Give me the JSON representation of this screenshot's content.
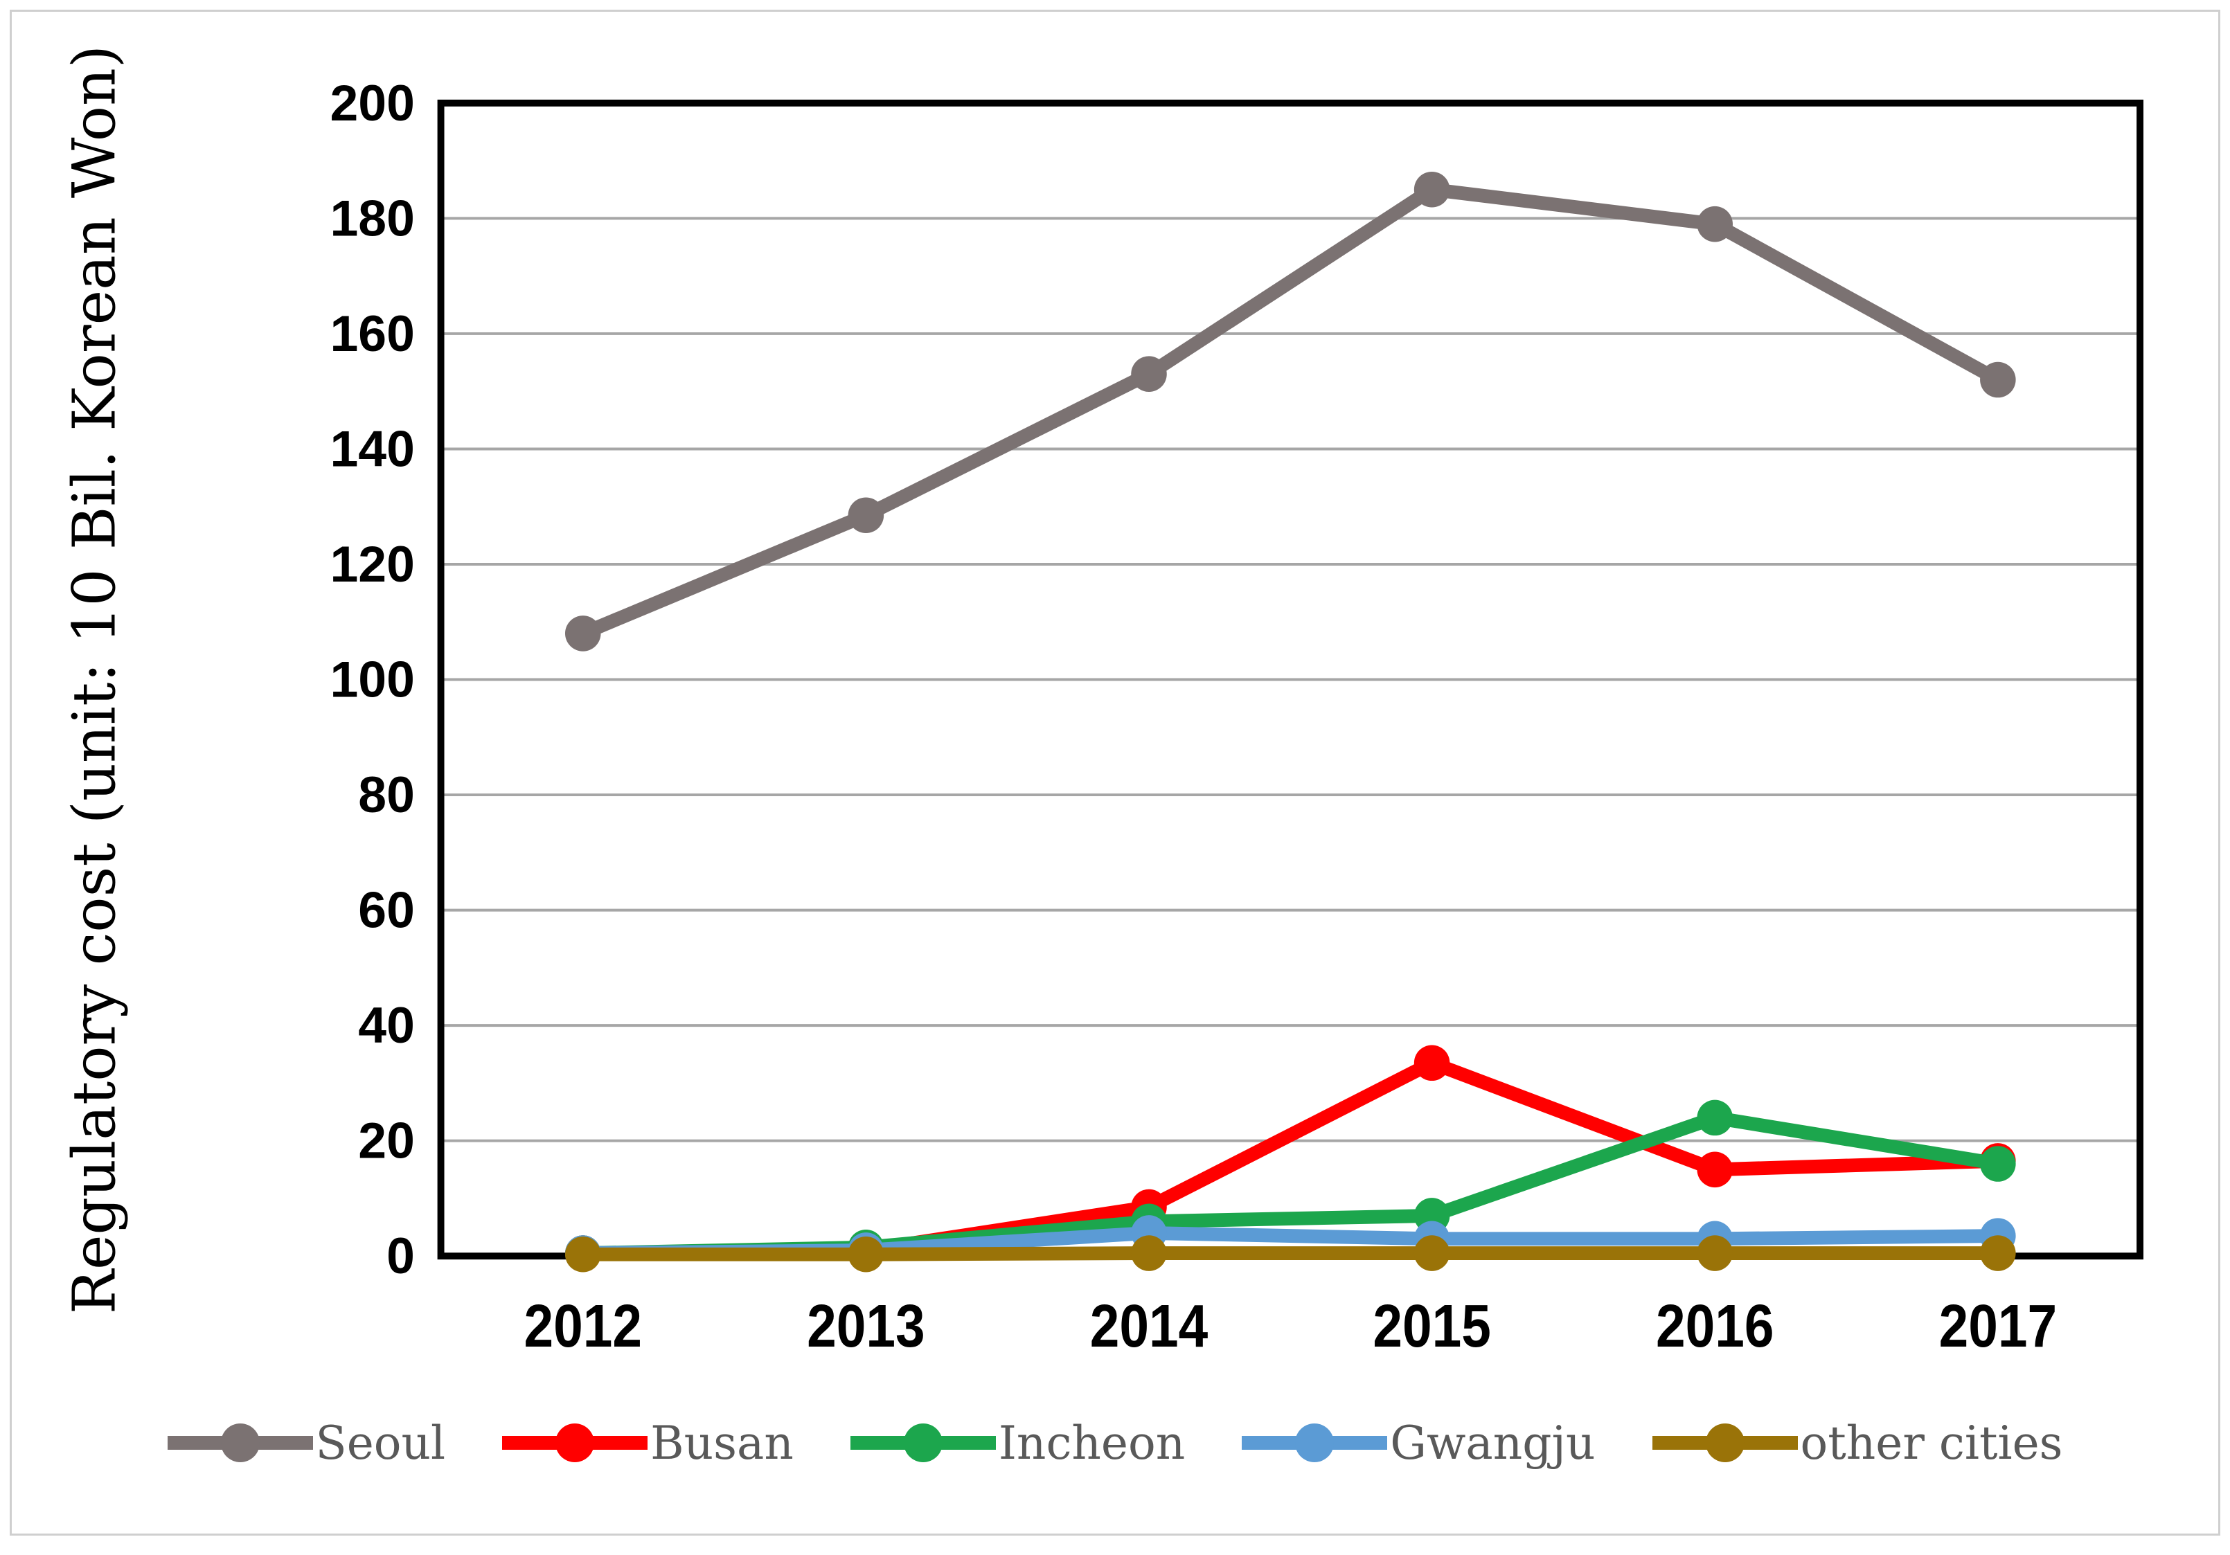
{
  "figure": {
    "background": "#ffffff",
    "outer_border_color": "#cfcfcf"
  },
  "chart_data": {
    "type": "line",
    "title": "",
    "xlabel": "",
    "ylabel": "Regulatory cost (unit: 10 Bil. Korean Won)",
    "categories": [
      "2012",
      "2013",
      "2014",
      "2015",
      "2016",
      "2017"
    ],
    "ylim": [
      0,
      200
    ],
    "ytick_step": 20,
    "ytick_labels": [
      "0",
      "20",
      "40",
      "60",
      "80",
      "100",
      "120",
      "140",
      "160",
      "180",
      "200"
    ],
    "grid": "horizontal",
    "legend_position": "bottom",
    "series": [
      {
        "name": "Seoul",
        "color": "#7b7272",
        "values": [
          108,
          128.5,
          153,
          185,
          179,
          152
        ]
      },
      {
        "name": "Busan",
        "color": "#ff0000",
        "values": [
          0.5,
          1,
          8.5,
          33.5,
          15,
          16.5
        ]
      },
      {
        "name": "Incheon",
        "color": "#1ca64d",
        "values": [
          0.5,
          1.5,
          6,
          7,
          24,
          16
        ]
      },
      {
        "name": "Gwangju",
        "color": "#5b9bd5",
        "values": [
          0.5,
          1,
          4,
          3,
          3,
          3.5
        ]
      },
      {
        "name": "other cities",
        "color": "#9a7308",
        "values": [
          0.3,
          0.3,
          0.5,
          0.5,
          0.5,
          0.5
        ]
      }
    ],
    "styles": {
      "grid_color": "#a6a6a6",
      "axis_frame_color": "#000000",
      "tick_label_color": "#000000",
      "legend_text_color": "#595959"
    }
  }
}
